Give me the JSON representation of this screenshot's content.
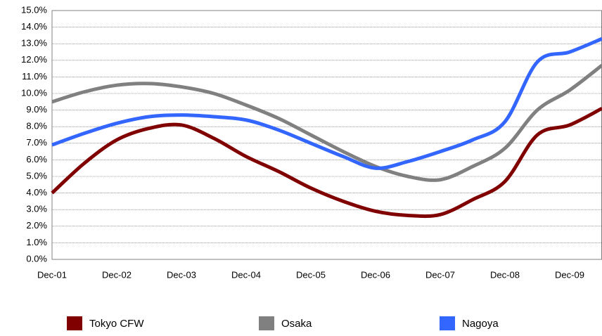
{
  "chart_data": {
    "type": "line",
    "categories": [
      "Dec-01",
      null,
      "Dec-02",
      null,
      "Dec-03",
      null,
      "Dec-04",
      null,
      "Dec-05",
      null,
      "Dec-06",
      null,
      "Dec-07",
      null,
      "Dec-08",
      null,
      "Dec-09",
      null
    ],
    "series": [
      {
        "name": "Tokyo CFW",
        "color": "#800000",
        "values": [
          4.0,
          5.8,
          7.2,
          7.9,
          8.1,
          7.3,
          6.2,
          5.3,
          4.3,
          3.5,
          2.9,
          2.65,
          2.7,
          3.6,
          4.7,
          7.5,
          8.1,
          9.1
        ]
      },
      {
        "name": "Osaka",
        "color": "#808080",
        "values": [
          9.5,
          10.1,
          10.5,
          10.6,
          10.4,
          10.0,
          9.3,
          8.5,
          7.5,
          6.5,
          5.6,
          5.0,
          4.8,
          5.6,
          6.7,
          9.0,
          10.2,
          11.7
        ]
      },
      {
        "name": "Nagoya",
        "color": "#3366ff",
        "values": [
          6.9,
          7.6,
          8.2,
          8.6,
          8.7,
          8.6,
          8.4,
          7.8,
          7.0,
          6.2,
          5.5,
          5.9,
          6.5,
          7.2,
          8.3,
          11.9,
          12.5,
          13.3
        ]
      }
    ],
    "ylim": [
      0,
      15
    ],
    "yticks": [
      {
        "value": 0,
        "label": "0.0%"
      },
      {
        "value": 1,
        "label": "1.0%"
      },
      {
        "value": 2,
        "label": "2.0%"
      },
      {
        "value": 3,
        "label": "3.0%"
      },
      {
        "value": 4,
        "label": "4.0%"
      },
      {
        "value": 5,
        "label": "5.0%"
      },
      {
        "value": 6,
        "label": "6.0%"
      },
      {
        "value": 7,
        "label": "7.0%"
      },
      {
        "value": 8,
        "label": "8.0%"
      },
      {
        "value": 9,
        "label": "9.0%"
      },
      {
        "value": 10,
        "label": "10.0%"
      },
      {
        "value": 11,
        "label": "11.0%"
      },
      {
        "value": 12,
        "label": "12.0%"
      },
      {
        "value": 13,
        "label": "13.0%"
      },
      {
        "value": 14,
        "label": "14.0%"
      },
      {
        "value": 15,
        "label": "15.0%"
      }
    ],
    "grid": true,
    "legend": "bottom"
  }
}
